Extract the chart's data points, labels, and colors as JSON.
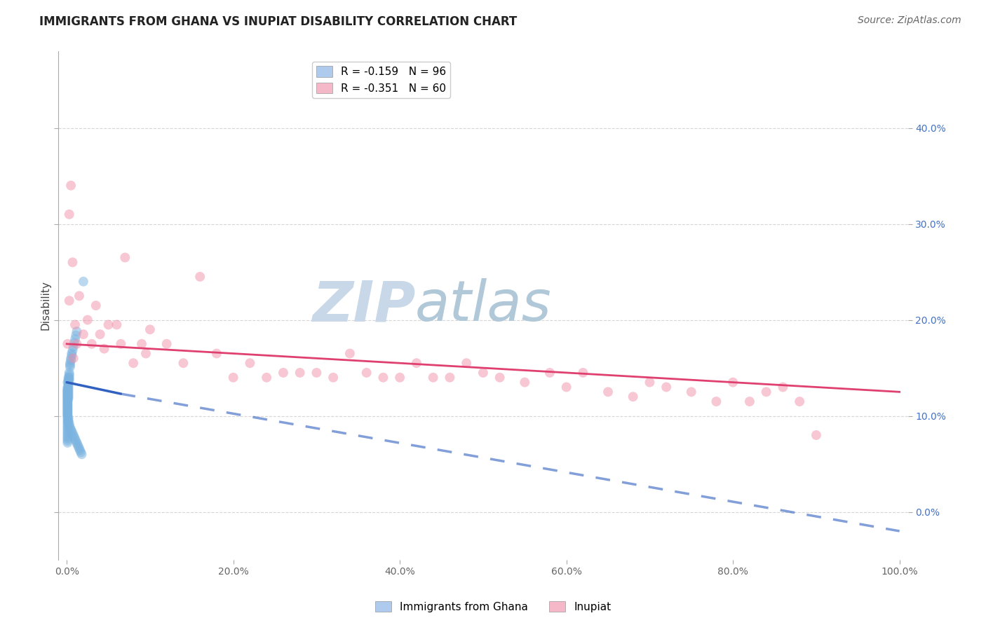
{
  "title": "IMMIGRANTS FROM GHANA VS INUPIAT DISABILITY CORRELATION CHART",
  "source_text": "Source: ZipAtlas.com",
  "ylabel": "Disability",
  "xlim": [
    -0.01,
    1.01
  ],
  "ylim": [
    -0.05,
    0.48
  ],
  "yticks": [
    0.0,
    0.1,
    0.2,
    0.3,
    0.4
  ],
  "ytick_labels_left": [
    "",
    "",
    "",
    "",
    ""
  ],
  "ytick_labels_right": [
    "0.0%",
    "10.0%",
    "20.0%",
    "30.0%",
    "40.0%"
  ],
  "xticks": [
    0.0,
    0.2,
    0.4,
    0.6,
    0.8,
    1.0
  ],
  "xtick_labels": [
    "0.0%",
    "20.0%",
    "40.0%",
    "60.0%",
    "80.0%",
    "100.0%"
  ],
  "legend_entries": [
    {
      "label": "R = -0.159   N = 96",
      "color": "#aecbee"
    },
    {
      "label": "R = -0.351   N = 60",
      "color": "#f4b8c8"
    }
  ],
  "scatter_blue_x": [
    0.001,
    0.001,
    0.001,
    0.001,
    0.001,
    0.001,
    0.001,
    0.001,
    0.001,
    0.001,
    0.001,
    0.001,
    0.001,
    0.001,
    0.001,
    0.001,
    0.001,
    0.001,
    0.001,
    0.001,
    0.001,
    0.001,
    0.001,
    0.001,
    0.001,
    0.001,
    0.001,
    0.001,
    0.001,
    0.001,
    0.002,
    0.002,
    0.002,
    0.002,
    0.002,
    0.002,
    0.002,
    0.002,
    0.002,
    0.002,
    0.002,
    0.002,
    0.003,
    0.003,
    0.003,
    0.003,
    0.003,
    0.004,
    0.004,
    0.004,
    0.005,
    0.005,
    0.006,
    0.006,
    0.007,
    0.008,
    0.009,
    0.01,
    0.011,
    0.012,
    0.001,
    0.001,
    0.001,
    0.001,
    0.001,
    0.001,
    0.001,
    0.001,
    0.001,
    0.001,
    0.001,
    0.001,
    0.001,
    0.001,
    0.001,
    0.002,
    0.002,
    0.002,
    0.003,
    0.003,
    0.004,
    0.005,
    0.006,
    0.007,
    0.008,
    0.009,
    0.01,
    0.011,
    0.012,
    0.013,
    0.014,
    0.015,
    0.016,
    0.017,
    0.018,
    0.02
  ],
  "scatter_blue_y": [
    0.135,
    0.13,
    0.128,
    0.127,
    0.126,
    0.125,
    0.124,
    0.123,
    0.122,
    0.121,
    0.12,
    0.119,
    0.118,
    0.117,
    0.116,
    0.115,
    0.114,
    0.113,
    0.112,
    0.111,
    0.11,
    0.109,
    0.108,
    0.107,
    0.106,
    0.105,
    0.104,
    0.103,
    0.102,
    0.101,
    0.14,
    0.138,
    0.136,
    0.134,
    0.132,
    0.13,
    0.128,
    0.126,
    0.124,
    0.122,
    0.12,
    0.118,
    0.145,
    0.143,
    0.141,
    0.139,
    0.137,
    0.155,
    0.153,
    0.151,
    0.16,
    0.158,
    0.165,
    0.163,
    0.168,
    0.172,
    0.176,
    0.18,
    0.184,
    0.188,
    0.1,
    0.098,
    0.096,
    0.094,
    0.092,
    0.09,
    0.088,
    0.086,
    0.084,
    0.082,
    0.08,
    0.078,
    0.076,
    0.074,
    0.072,
    0.098,
    0.096,
    0.094,
    0.092,
    0.09,
    0.088,
    0.086,
    0.084,
    0.082,
    0.08,
    0.078,
    0.076,
    0.074,
    0.072,
    0.07,
    0.068,
    0.066,
    0.064,
    0.062,
    0.06,
    0.24
  ],
  "scatter_pink_x": [
    0.001,
    0.003,
    0.005,
    0.007,
    0.01,
    0.015,
    0.02,
    0.025,
    0.03,
    0.035,
    0.04,
    0.05,
    0.06,
    0.07,
    0.08,
    0.09,
    0.1,
    0.12,
    0.14,
    0.16,
    0.18,
    0.2,
    0.22,
    0.24,
    0.26,
    0.28,
    0.3,
    0.32,
    0.34,
    0.36,
    0.38,
    0.4,
    0.42,
    0.44,
    0.46,
    0.48,
    0.5,
    0.52,
    0.55,
    0.58,
    0.6,
    0.62,
    0.65,
    0.68,
    0.7,
    0.72,
    0.75,
    0.78,
    0.8,
    0.82,
    0.84,
    0.86,
    0.88,
    0.9,
    0.003,
    0.008,
    0.012,
    0.045,
    0.065,
    0.095
  ],
  "scatter_pink_y": [
    0.175,
    0.31,
    0.34,
    0.26,
    0.195,
    0.225,
    0.185,
    0.2,
    0.175,
    0.215,
    0.185,
    0.195,
    0.195,
    0.265,
    0.155,
    0.175,
    0.19,
    0.175,
    0.155,
    0.245,
    0.165,
    0.14,
    0.155,
    0.14,
    0.145,
    0.145,
    0.145,
    0.14,
    0.165,
    0.145,
    0.14,
    0.14,
    0.155,
    0.14,
    0.14,
    0.155,
    0.145,
    0.14,
    0.135,
    0.145,
    0.13,
    0.145,
    0.125,
    0.12,
    0.135,
    0.13,
    0.125,
    0.115,
    0.135,
    0.115,
    0.125,
    0.13,
    0.115,
    0.08,
    0.22,
    0.16,
    0.175,
    0.17,
    0.175,
    0.165
  ],
  "trend_blue_x0": 0.0,
  "trend_blue_x1": 0.065,
  "trend_blue_x_dashed_end": 1.0,
  "trend_blue_y0": 0.135,
  "trend_blue_y1": 0.123,
  "trend_blue_y_dashed_end": -0.02,
  "trend_blue_color": "#3060c0",
  "trend_blue_linewidth": 2.5,
  "trend_pink_x0": 0.0,
  "trend_pink_x1": 1.0,
  "trend_pink_y0": 0.175,
  "trend_pink_y1": 0.125,
  "trend_pink_color": "#e04070",
  "trend_pink_linewidth": 2.0,
  "scatter_blue_color": "#7ab3e0",
  "scatter_pink_color": "#f090a8",
  "scatter_alpha": 0.5,
  "scatter_size": 100,
  "background_color": "#ffffff",
  "grid_color": "#cccccc",
  "watermark_text": "ZIP",
  "watermark_text2": "atlas",
  "watermark_color1": "#c8d8e8",
  "watermark_color2": "#b0c8d8",
  "title_fontsize": 12,
  "source_fontsize": 10,
  "axis_label_fontsize": 11,
  "tick_fontsize": 10,
  "legend_fontsize": 11
}
